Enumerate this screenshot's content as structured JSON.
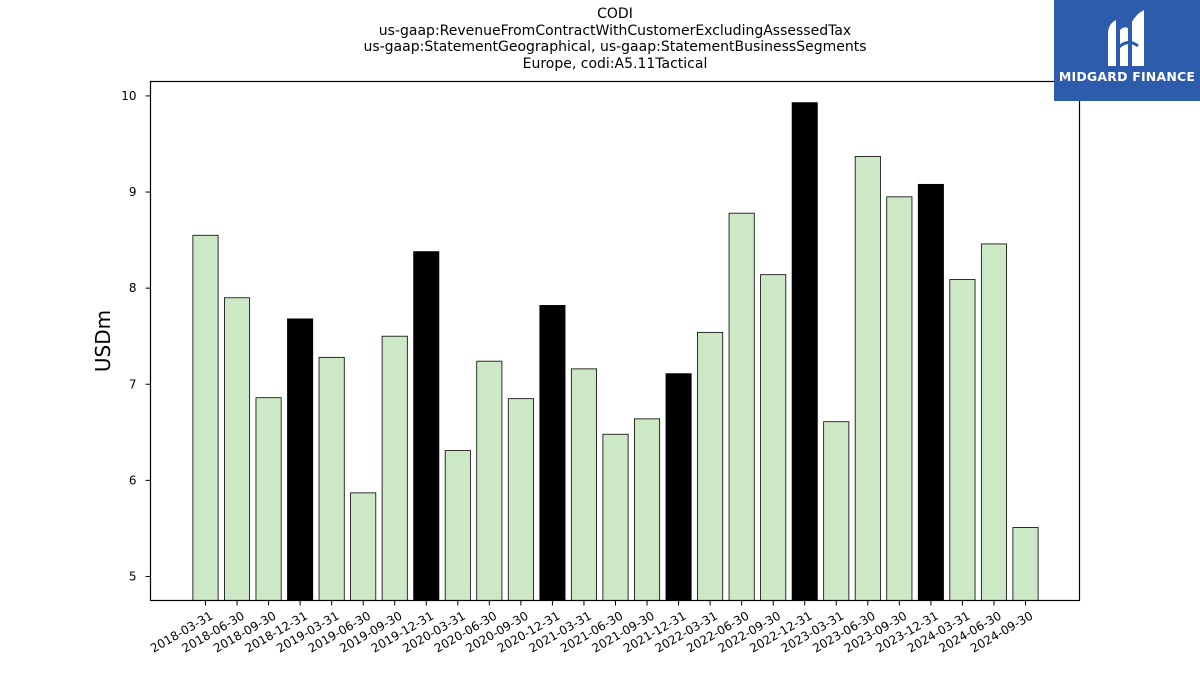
{
  "chart_data": {
    "type": "bar",
    "title_lines": [
      "CODI",
      "us-gaap:RevenueFromContractWithCustomerExcludingAssessedTax",
      "us-gaap:StatementGeographical, us-gaap:StatementBusinessSegments",
      "Europe, codi:A5.11Tactical"
    ],
    "ylabel": "USDm",
    "ylim": [
      4.75,
      10.15
    ],
    "yticks": [
      5,
      6,
      7,
      8,
      9,
      10
    ],
    "categories": [
      "2018-03-31",
      "2018-06-30",
      "2018-09-30",
      "2018-12-31",
      "2019-03-31",
      "2019-06-30",
      "2019-09-30",
      "2019-12-31",
      "2020-03-31",
      "2020-06-30",
      "2020-09-30",
      "2020-12-31",
      "2021-03-31",
      "2021-06-30",
      "2021-09-30",
      "2021-12-31",
      "2022-03-31",
      "2022-06-30",
      "2022-09-30",
      "2022-12-31",
      "2023-03-31",
      "2023-06-30",
      "2023-09-30",
      "2023-12-31",
      "2024-03-31",
      "2024-06-30",
      "2024-09-30"
    ],
    "values": [
      8.55,
      7.9,
      6.86,
      7.68,
      7.28,
      5.87,
      7.5,
      8.38,
      6.31,
      7.24,
      6.85,
      7.82,
      7.16,
      6.48,
      6.64,
      7.11,
      7.54,
      8.78,
      8.14,
      9.93,
      6.61,
      9.37,
      8.95,
      9.08,
      8.09,
      8.46,
      5.51
    ],
    "colors": {
      "quarter": "#cde8c4",
      "year_end": "#000000",
      "edge": "#000000"
    },
    "grid": false
  },
  "logo": {
    "text": "MIDGARD FINANCE",
    "background": "#2e5cad"
  }
}
